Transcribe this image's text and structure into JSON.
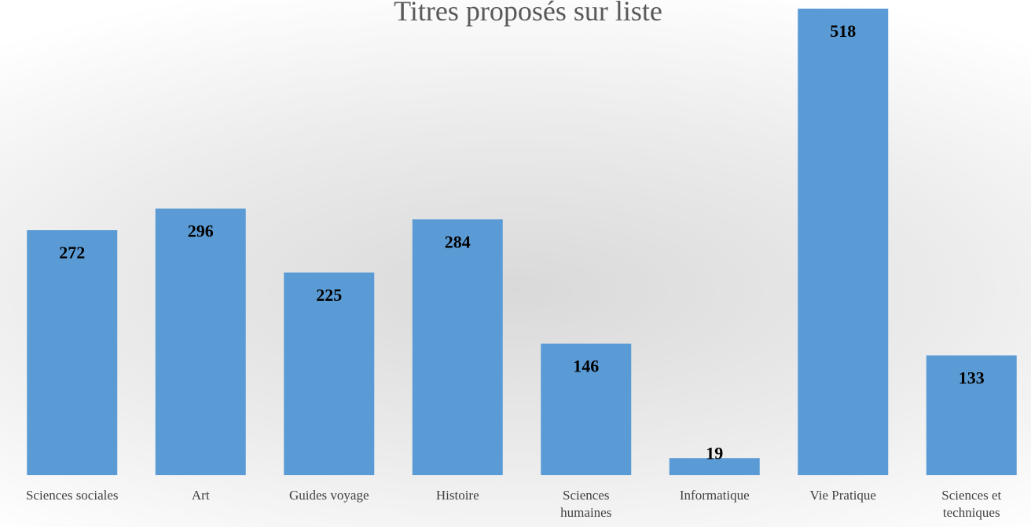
{
  "chart_data": {
    "type": "bar",
    "title": "Titres proposés sur liste",
    "categories": [
      "Sciences sociales",
      "Art",
      "Guides voyage",
      "Histoire",
      "Sciences humaines",
      "Informatique",
      "Vie Pratique",
      "Sciences et techniques"
    ],
    "values": [
      272,
      296,
      225,
      284,
      146,
      19,
      518,
      133
    ],
    "color": "#5b9bd5"
  }
}
